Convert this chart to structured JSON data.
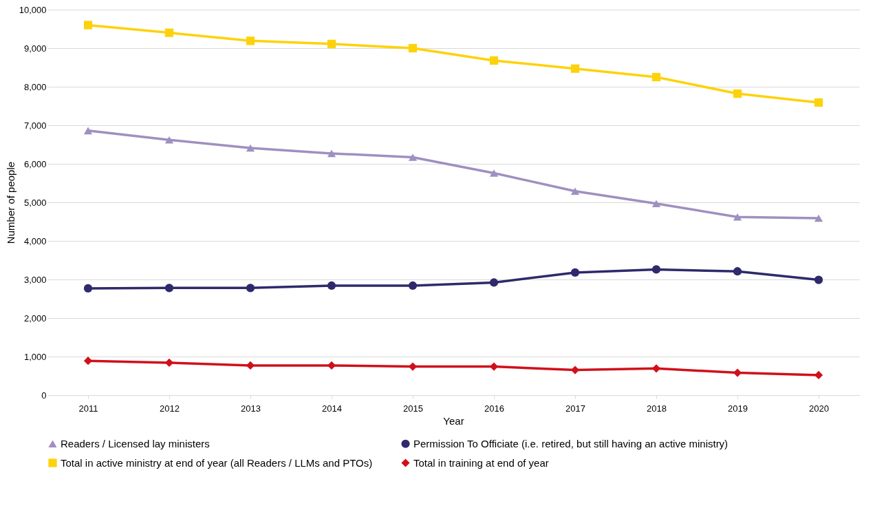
{
  "chart_data": {
    "type": "line",
    "xlabel": "Year",
    "ylabel": "Number of people",
    "categories": [
      "2011",
      "2012",
      "2013",
      "2014",
      "2015",
      "2016",
      "2017",
      "2018",
      "2019",
      "2020"
    ],
    "series": [
      {
        "name": "Readers / Licensed lay ministers",
        "color": "#a08fc0",
        "marker": "triangle",
        "values": [
          6860,
          6620,
          6410,
          6270,
          6170,
          5760,
          5290,
          4970,
          4620,
          4590
        ]
      },
      {
        "name": "Permission To Officiate (i.e. retired, but still having an active ministry)",
        "color": "#2e2a6b",
        "marker": "circle",
        "values": [
          2770,
          2780,
          2780,
          2840,
          2840,
          2920,
          3180,
          3260,
          3210,
          2990
        ]
      },
      {
        "name": "Total in active ministry at end of year (all Readers / LLMs and PTOs)",
        "color": "#fdd20a",
        "marker": "square",
        "values": [
          9600,
          9400,
          9190,
          9110,
          9000,
          8680,
          8470,
          8250,
          7820,
          7590
        ]
      },
      {
        "name": "Total in training at end of year",
        "color": "#d0101b",
        "marker": "diamond",
        "values": [
          890,
          840,
          770,
          770,
          740,
          740,
          650,
          690,
          580,
          520
        ]
      }
    ],
    "ylim": [
      0,
      10000
    ],
    "yticks": [
      {
        "value": 0,
        "label": "0"
      },
      {
        "value": 1000,
        "label": "1,000"
      },
      {
        "value": 2000,
        "label": "2,000"
      },
      {
        "value": 3000,
        "label": "3,000"
      },
      {
        "value": 4000,
        "label": "4,000"
      },
      {
        "value": 5000,
        "label": "5,000"
      },
      {
        "value": 6000,
        "label": "6,000"
      },
      {
        "value": 7000,
        "label": "7,000"
      },
      {
        "value": 8000,
        "label": "8,000"
      },
      {
        "value": 9000,
        "label": "9,000"
      },
      {
        "value": 10000,
        "label": "10,000"
      }
    ],
    "grid": "y",
    "legend": "bottom",
    "line_style": "solid"
  }
}
